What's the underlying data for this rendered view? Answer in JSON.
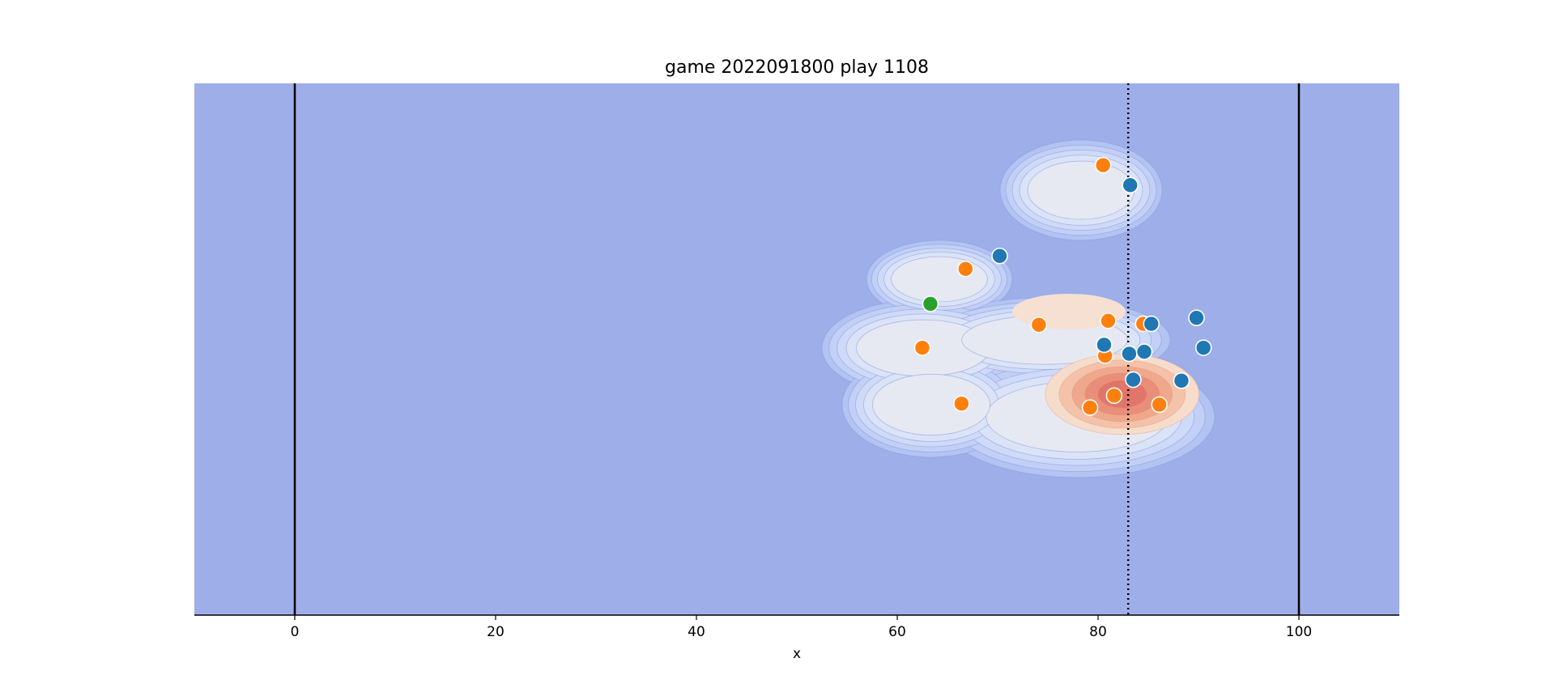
{
  "chart_data": {
    "type": "scatter",
    "title": "game 2022091800 play 1108",
    "xlabel": "x",
    "ylabel": "",
    "xlim": [
      -10,
      110
    ],
    "ylim": [
      0,
      53.3
    ],
    "xticks": [
      "0",
      "20",
      "40",
      "60",
      "80",
      "100"
    ],
    "xtick_values": [
      0,
      20,
      40,
      60,
      80,
      100
    ],
    "grid": false,
    "background_color": "#9eaee8",
    "vertical_lines": [
      {
        "x": 0,
        "style": "solid",
        "color": "#000000"
      },
      {
        "x": 100,
        "style": "solid",
        "color": "#000000"
      },
      {
        "x": 83,
        "style": "dotted",
        "color": "#000000",
        "meaning": "line of scrimmage"
      }
    ],
    "density_overlay": {
      "type": "contourf",
      "colormap": "coolwarm",
      "peak": {
        "x": 82,
        "y": 21.5
      }
    },
    "series": [
      {
        "color": "#ff7f0e",
        "points": [
          {
            "x": 80.5,
            "y": 45.1
          },
          {
            "x": 66.8,
            "y": 34.7
          },
          {
            "x": 74.1,
            "y": 29.1
          },
          {
            "x": 81.0,
            "y": 29.5
          },
          {
            "x": 84.5,
            "y": 29.2
          },
          {
            "x": 62.5,
            "y": 26.8
          },
          {
            "x": 80.7,
            "y": 26.0
          },
          {
            "x": 81.6,
            "y": 22.0
          },
          {
            "x": 79.2,
            "y": 20.8
          },
          {
            "x": 86.1,
            "y": 21.1
          },
          {
            "x": 66.4,
            "y": 21.2
          }
        ]
      },
      {
        "color": "#1f77b4",
        "points": [
          {
            "x": 83.2,
            "y": 43.1
          },
          {
            "x": 70.2,
            "y": 36.0
          },
          {
            "x": 89.8,
            "y": 29.8
          },
          {
            "x": 85.3,
            "y": 29.2
          },
          {
            "x": 80.6,
            "y": 27.1
          },
          {
            "x": 83.1,
            "y": 26.2
          },
          {
            "x": 84.6,
            "y": 26.4
          },
          {
            "x": 90.5,
            "y": 26.8
          },
          {
            "x": 83.5,
            "y": 23.6
          },
          {
            "x": 88.3,
            "y": 23.5
          }
        ]
      },
      {
        "color": "#2ca02c",
        "points": [
          {
            "x": 63.3,
            "y": 31.2
          }
        ]
      }
    ]
  }
}
